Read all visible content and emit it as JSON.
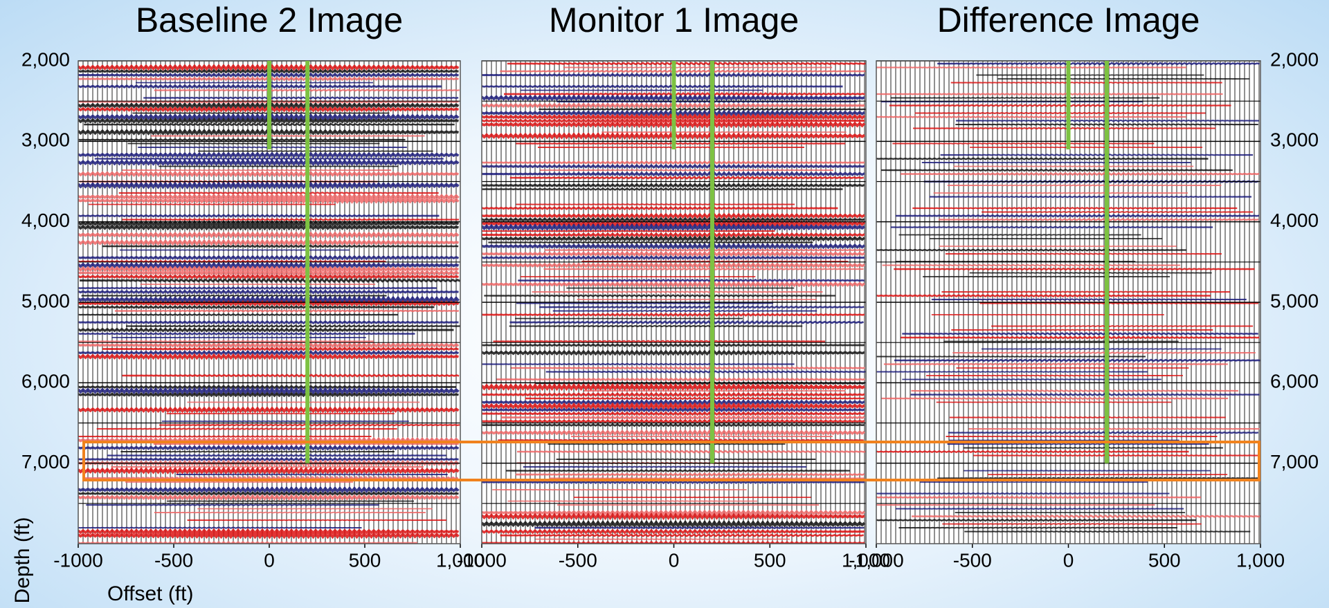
{
  "chart_data": [
    {
      "type": "seismic",
      "title": "Baseline 2 Image",
      "xlim": [
        -1000,
        1000
      ],
      "ylim": [
        2000,
        8000
      ],
      "y_inverted": true,
      "xticks": [
        -1000,
        -500,
        0,
        500,
        {
          "value": 1000,
          "label": "1,000"
        }
      ],
      "yticks": [
        {
          "value": 2000,
          "label": "2,000"
        },
        {
          "value": 3000,
          "label": "3,000"
        },
        {
          "value": 4000,
          "label": "4,000"
        },
        {
          "value": 5000,
          "label": "5,000"
        },
        {
          "value": 6000,
          "label": "6,000"
        },
        {
          "value": 7000,
          "label": "7,000"
        }
      ],
      "y_minor_ticks": [
        2500,
        3500,
        4500,
        5500,
        6500,
        7500
      ],
      "y_axis": "left",
      "amplitude": 1,
      "ylabel": "Depth (ft)",
      "xlabel": "Offset (ft)",
      "well_lines": [
        {
          "x": 0,
          "top": 2000,
          "bottom": 3100,
          "color": "#7dc242"
        },
        {
          "x": 200,
          "top": 2000,
          "bottom": 7000,
          "color": "#7dc242"
        }
      ]
    },
    {
      "type": "seismic",
      "title": "Monitor 1 Image",
      "xlim": [
        -1000,
        1000
      ],
      "ylim": [
        2000,
        8000
      ],
      "y_inverted": true,
      "xticks": [
        -1000,
        -500,
        0,
        500,
        {
          "value": 1000,
          "label": "1,000"
        }
      ],
      "yticks": [
        2000,
        3000,
        4000,
        5000,
        6000,
        7000
      ],
      "y_minor_ticks": [
        2500,
        3500,
        4500,
        5500,
        6500,
        7500
      ],
      "y_axis": "none",
      "amplitude": 1,
      "well_lines": [
        {
          "x": 0,
          "top": 2000,
          "bottom": 3100,
          "color": "#7dc242"
        },
        {
          "x": 200,
          "top": 2000,
          "bottom": 7000,
          "color": "#7dc242"
        }
      ]
    },
    {
      "type": "seismic",
      "title": "Difference Image",
      "xlim": [
        -1000,
        1000
      ],
      "ylim": [
        2000,
        8000
      ],
      "y_inverted": true,
      "xticks": [
        {
          "value": -1000,
          "label": "-1,000"
        },
        -500,
        0,
        500,
        {
          "value": 1000,
          "label": "1,000"
        }
      ],
      "yticks": [
        {
          "value": 2000,
          "label": "2,000"
        },
        {
          "value": 3000,
          "label": "3,000"
        },
        {
          "value": 4000,
          "label": "4,000"
        },
        {
          "value": 5000,
          "label": "5,000"
        },
        {
          "value": 6000,
          "label": "6,000"
        },
        {
          "value": 7000,
          "label": "7,000"
        }
      ],
      "y_minor_ticks": [
        2500,
        3500,
        4500,
        5500,
        6500,
        7500
      ],
      "y_axis": "right",
      "amplitude": 0.45,
      "well_lines": [
        {
          "x": 0,
          "top": 2000,
          "bottom": 3100,
          "color": "#7dc242"
        },
        {
          "x": 200,
          "top": 2000,
          "bottom": 7000,
          "color": "#7dc242"
        }
      ]
    }
  ]
}
